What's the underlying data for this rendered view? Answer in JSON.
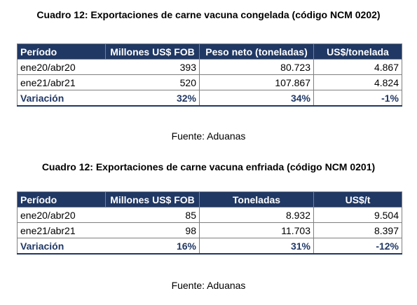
{
  "table1": {
    "title": "Cuadro 12: Exportaciones de carne vacuna congelada (código NCM 0202)",
    "headers": [
      "Período",
      "Millones US$ FOB",
      "Peso neto (toneladas)",
      "US$/tonelada"
    ],
    "rows": [
      [
        "ene20/abr20",
        "393",
        "80.723",
        "4.867"
      ],
      [
        "ene21/abr21",
        "520",
        "107.867",
        "4.824"
      ]
    ],
    "variation": [
      "Variación",
      "32%",
      "34%",
      "-1%"
    ],
    "source": "Fuente: Aduanas"
  },
  "table2": {
    "title": "Cuadro 12: Exportaciones de carne vacuna enfriada (código NCM 0201)",
    "headers": [
      "Período",
      "Millones US$ FOB",
      "Toneladas",
      "US$/t"
    ],
    "rows": [
      [
        "ene20/abr20",
        "85",
        "8.932",
        "9.504"
      ],
      [
        "ene21/abr21",
        "98",
        "11.703",
        "8.397"
      ]
    ],
    "variation": [
      "Variación",
      "16%",
      "31%",
      "-12%"
    ],
    "source": "Fuente: Aduanas"
  },
  "colors": {
    "header_bg": "#203864",
    "variation_text": "#203864"
  }
}
